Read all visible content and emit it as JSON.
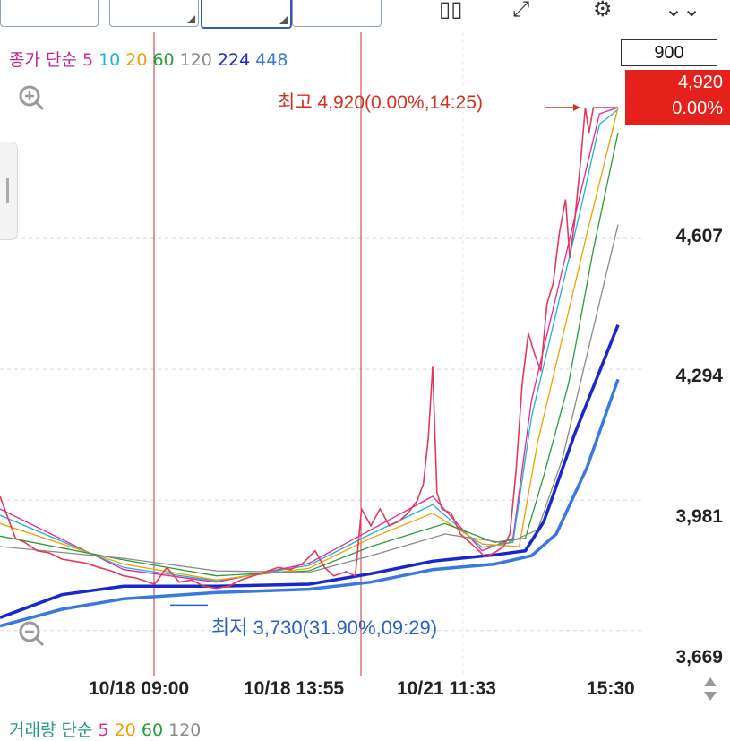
{
  "legend": {
    "label": "종가 단순",
    "periods": [
      {
        "text": "5",
        "color": "#e0289a"
      },
      {
        "text": "10",
        "color": "#1fb0d8"
      },
      {
        "text": "20",
        "color": "#f0a000"
      },
      {
        "text": "60",
        "color": "#2a9a3a"
      },
      {
        "text": "120",
        "color": "#8a8a8a"
      },
      {
        "text": "224",
        "color": "#1a28c8"
      },
      {
        "text": "448",
        "color": "#3a78e0"
      }
    ]
  },
  "volume_legend": {
    "label": "거래량 단순",
    "periods": [
      {
        "text": "5",
        "color": "#e0289a"
      },
      {
        "text": "20",
        "color": "#f0a000"
      },
      {
        "text": "60",
        "color": "#2a9a3a"
      },
      {
        "text": "120",
        "color": "#8a8a8a"
      }
    ]
  },
  "price_input": "900",
  "current": {
    "price": "4,920",
    "change": "0.00%"
  },
  "high_annotation": "최고 4,920(0.00%,14:25)",
  "low_annotation": "최저 3,730(31.90%,09:29)",
  "colors": {
    "price": "#e23a5a",
    "vline": "#c83232",
    "grid": "#d8d8d8",
    "current_bg": "#e5211b",
    "marker": "#d23222"
  },
  "icons": [
    "zoom-in-icon",
    "zoom-out-icon",
    "scroll-arrows-icon"
  ],
  "chart_data": {
    "type": "line",
    "y_ticks": [
      "4,607",
      "4,294",
      "3,981",
      "3,669"
    ],
    "ylim": [
      3600,
      4950
    ],
    "x_ticks": [
      "10/18 09:00",
      "10/18 13:55",
      "10/21 11:33",
      "15:30"
    ],
    "high": 4920,
    "low": 3730,
    "price": [
      [
        0.0,
        3990
      ],
      [
        0.01,
        3950
      ],
      [
        0.025,
        3890
      ],
      [
        0.04,
        3880
      ],
      [
        0.06,
        3860
      ],
      [
        0.08,
        3855
      ],
      [
        0.1,
        3840
      ],
      [
        0.12,
        3835
      ],
      [
        0.14,
        3830
      ],
      [
        0.16,
        3820
      ],
      [
        0.18,
        3812
      ],
      [
        0.2,
        3800
      ],
      [
        0.22,
        3795
      ],
      [
        0.25,
        3780
      ],
      [
        0.27,
        3820
      ],
      [
        0.29,
        3785
      ],
      [
        0.31,
        3790
      ],
      [
        0.33,
        3775
      ],
      [
        0.35,
        3770
      ],
      [
        0.37,
        3775
      ],
      [
        0.39,
        3790
      ],
      [
        0.41,
        3800
      ],
      [
        0.43,
        3810
      ],
      [
        0.45,
        3820
      ],
      [
        0.47,
        3815
      ],
      [
        0.49,
        3830
      ],
      [
        0.51,
        3860
      ],
      [
        0.525,
        3820
      ],
      [
        0.54,
        3800
      ],
      [
        0.56,
        3810
      ],
      [
        0.575,
        3800
      ],
      [
        0.585,
        3960
      ],
      [
        0.6,
        3920
      ],
      [
        0.615,
        3960
      ],
      [
        0.63,
        3920
      ],
      [
        0.645,
        3930
      ],
      [
        0.66,
        3950
      ],
      [
        0.675,
        3980
      ],
      [
        0.685,
        4020
      ],
      [
        0.693,
        4130
      ],
      [
        0.7,
        4300
      ],
      [
        0.707,
        4000
      ],
      [
        0.715,
        3960
      ],
      [
        0.73,
        3950
      ],
      [
        0.745,
        3900
      ],
      [
        0.76,
        3880
      ],
      [
        0.775,
        3860
      ],
      [
        0.785,
        3845
      ],
      [
        0.795,
        3852
      ],
      [
        0.805,
        3860
      ],
      [
        0.815,
        3870
      ],
      [
        0.825,
        3900
      ],
      [
        0.835,
        4050
      ],
      [
        0.845,
        4260
      ],
      [
        0.855,
        4380
      ],
      [
        0.865,
        4330
      ],
      [
        0.875,
        4290
      ],
      [
        0.885,
        4450
      ],
      [
        0.895,
        4500
      ],
      [
        0.905,
        4620
      ],
      [
        0.915,
        4700
      ],
      [
        0.922,
        4560
      ],
      [
        0.93,
        4650
      ],
      [
        0.94,
        4800
      ],
      [
        0.947,
        4920
      ],
      [
        0.953,
        4860
      ],
      [
        0.96,
        4920
      ],
      [
        1.0,
        4920
      ]
    ],
    "series": [
      {
        "period": "5",
        "values": [
          [
            0,
            3960
          ],
          [
            0.2,
            3815
          ],
          [
            0.35,
            3785
          ],
          [
            0.5,
            3830
          ],
          [
            0.6,
            3910
          ],
          [
            0.7,
            3990
          ],
          [
            0.78,
            3860
          ],
          [
            0.83,
            3890
          ],
          [
            0.86,
            4220
          ],
          [
            0.9,
            4470
          ],
          [
            0.94,
            4720
          ],
          [
            0.97,
            4905
          ],
          [
            1.0,
            4920
          ]
        ]
      },
      {
        "period": "10",
        "values": [
          [
            0,
            3945
          ],
          [
            0.2,
            3820
          ],
          [
            0.35,
            3788
          ],
          [
            0.5,
            3825
          ],
          [
            0.6,
            3900
          ],
          [
            0.7,
            3970
          ],
          [
            0.78,
            3868
          ],
          [
            0.83,
            3880
          ],
          [
            0.86,
            4180
          ],
          [
            0.9,
            4430
          ],
          [
            0.94,
            4680
          ],
          [
            0.97,
            4880
          ],
          [
            1.0,
            4915
          ]
        ]
      },
      {
        "period": "20",
        "values": [
          [
            0,
            3925
          ],
          [
            0.2,
            3828
          ],
          [
            0.35,
            3790
          ],
          [
            0.5,
            3818
          ],
          [
            0.6,
            3890
          ],
          [
            0.7,
            3950
          ],
          [
            0.78,
            3876
          ],
          [
            0.84,
            3870
          ],
          [
            0.87,
            4120
          ],
          [
            0.91,
            4370
          ],
          [
            0.95,
            4620
          ],
          [
            1.0,
            4920
          ]
        ]
      },
      {
        "period": "60",
        "values": [
          [
            0,
            3895
          ],
          [
            0.2,
            3838
          ],
          [
            0.35,
            3800
          ],
          [
            0.5,
            3812
          ],
          [
            0.6,
            3870
          ],
          [
            0.72,
            3925
          ],
          [
            0.8,
            3880
          ],
          [
            0.85,
            3890
          ],
          [
            0.88,
            4040
          ],
          [
            0.92,
            4260
          ],
          [
            0.96,
            4580
          ],
          [
            1.0,
            4860
          ]
        ]
      },
      {
        "period": "120",
        "values": [
          [
            0,
            3870
          ],
          [
            0.2,
            3842
          ],
          [
            0.35,
            3812
          ],
          [
            0.5,
            3808
          ],
          [
            0.6,
            3848
          ],
          [
            0.72,
            3900
          ],
          [
            0.82,
            3878
          ],
          [
            0.87,
            3910
          ],
          [
            0.91,
            4080
          ],
          [
            0.95,
            4330
          ],
          [
            1.0,
            4640
          ]
        ]
      },
      {
        "period": "224",
        "values": [
          [
            0,
            3700
          ],
          [
            0.1,
            3755
          ],
          [
            0.2,
            3775
          ],
          [
            0.35,
            3775
          ],
          [
            0.5,
            3780
          ],
          [
            0.6,
            3805
          ],
          [
            0.7,
            3835
          ],
          [
            0.8,
            3850
          ],
          [
            0.85,
            3860
          ],
          [
            0.88,
            3930
          ],
          [
            0.93,
            4140
          ],
          [
            1.0,
            4400
          ]
        ]
      },
      {
        "period": "448",
        "values": [
          [
            0,
            3680
          ],
          [
            0.1,
            3720
          ],
          [
            0.2,
            3745
          ],
          [
            0.35,
            3760
          ],
          [
            0.5,
            3768
          ],
          [
            0.6,
            3785
          ],
          [
            0.7,
            3815
          ],
          [
            0.8,
            3828
          ],
          [
            0.86,
            3848
          ],
          [
            0.9,
            3900
          ],
          [
            0.95,
            4060
          ],
          [
            1.0,
            4270
          ]
        ]
      }
    ]
  }
}
